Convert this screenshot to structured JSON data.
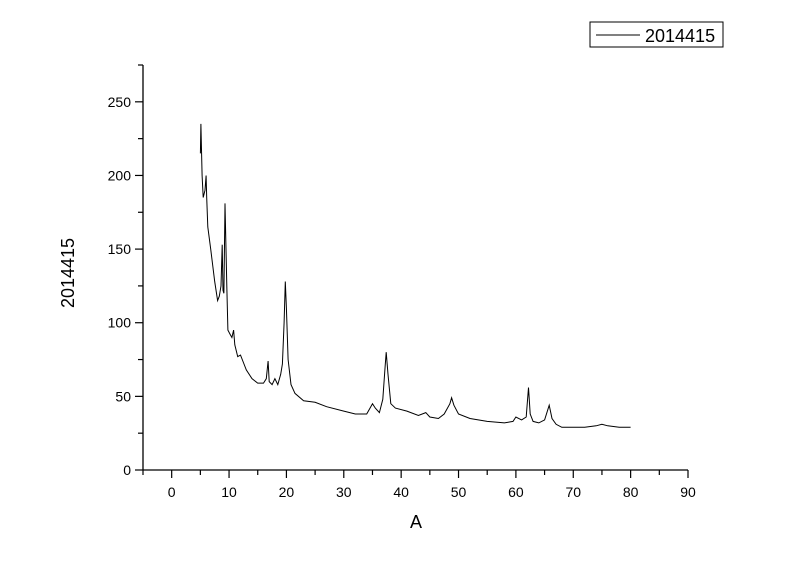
{
  "chart_data": {
    "type": "line",
    "title": "",
    "xlabel": "A",
    "ylabel": "2014415",
    "xlim": [
      -5,
      90
    ],
    "ylim": [
      0,
      275
    ],
    "xticks": [
      0,
      10,
      20,
      30,
      40,
      50,
      60,
      70,
      80,
      90
    ],
    "yticks": [
      0,
      50,
      100,
      150,
      200,
      250
    ],
    "grid": false,
    "legend_position": "top-right",
    "line_color": "#000000",
    "series": [
      {
        "name": "2014415",
        "x": [
          5.0,
          5.1,
          5.3,
          5.5,
          5.8,
          6.0,
          6.1,
          6.3,
          6.8,
          7.5,
          8.0,
          8.3,
          8.6,
          8.8,
          8.95,
          9.1,
          9.3,
          9.6,
          9.8,
          10.2,
          10.5,
          10.8,
          11.0,
          11.5,
          12.0,
          12.5,
          13,
          14,
          15,
          16,
          16.5,
          16.8,
          17.0,
          17.5,
          18.0,
          18.5,
          19.0,
          19.3,
          19.6,
          19.8,
          20.0,
          20.3,
          20.8,
          21.5,
          23,
          25,
          27,
          30,
          32,
          34,
          35,
          35.5,
          36.2,
          36.8,
          37.2,
          37.4,
          37.7,
          38.2,
          39,
          41,
          43,
          44.3,
          45,
          46.5,
          47.5,
          48.5,
          48.8,
          49.2,
          50,
          52,
          55,
          58,
          59.5,
          60,
          61,
          61.8,
          62.2,
          62.5,
          63,
          64,
          65,
          65.8,
          66.3,
          67,
          68,
          70,
          72,
          74,
          75,
          76,
          78,
          80
        ],
        "y": [
          215,
          235,
          200,
          185,
          190,
          200,
          185,
          165,
          150,
          128,
          115,
          118,
          125,
          153,
          122,
          120,
          181,
          125,
          95,
          92,
          90,
          95,
          85,
          77,
          78,
          73,
          68,
          62,
          59,
          59,
          62,
          74,
          60,
          58,
          62,
          58,
          65,
          72,
          100,
          128,
          110,
          75,
          58,
          52,
          47,
          46,
          43,
          40,
          38,
          38,
          45,
          42,
          39,
          48,
          70,
          80,
          65,
          45,
          42,
          40,
          37,
          39,
          36,
          35,
          38,
          45,
          49,
          44,
          38,
          35,
          33,
          32,
          33,
          36,
          34,
          36,
          56,
          38,
          33,
          32,
          34,
          44,
          35,
          31,
          29,
          29,
          29,
          30,
          31,
          30,
          29,
          29
        ]
      }
    ]
  }
}
